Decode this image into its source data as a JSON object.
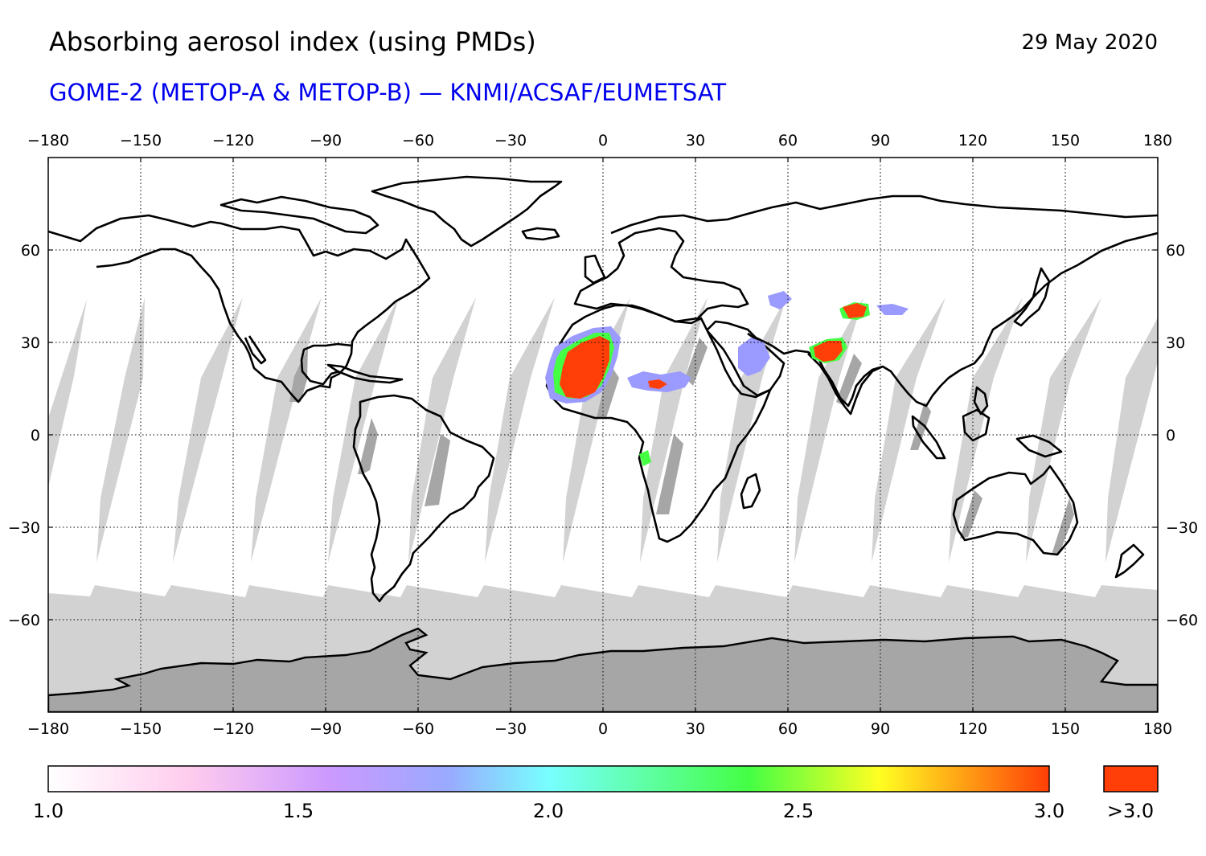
{
  "header": {
    "title": "Absorbing aerosol index (using PMDs)",
    "date": "29 May 2020",
    "subtitle": "GOME-2 (METOP-A & METOP-B) — KNMI/ACSAF/EUMETSAT"
  },
  "map": {
    "projection": "equirectangular",
    "lon_range": [
      -180,
      180
    ],
    "lat_range": [
      -90,
      90
    ],
    "lon_ticks": [
      -180,
      -150,
      -120,
      -90,
      -60,
      -30,
      0,
      30,
      60,
      90,
      120,
      150,
      180
    ],
    "lat_ticks": [
      -60,
      -30,
      0,
      30,
      60
    ],
    "lon_tick_labels": [
      "−180",
      "−150",
      "−120",
      "−90",
      "−60",
      "−30",
      "0",
      "30",
      "60",
      "90",
      "120",
      "150",
      "180"
    ],
    "lat_tick_labels": [
      "−60",
      "−30",
      "0",
      "30",
      "60"
    ],
    "grid": "dotted",
    "colors": {
      "no_data": "#d2d2d2",
      "land_no_data": "#a6a6a6",
      "coastline": "#000000",
      "high_value": "#ff3f07"
    }
  },
  "colorbar": {
    "range": [
      1.0,
      3.0
    ],
    "tick_labels": [
      "1.0",
      "1.5",
      "2.0",
      "2.5",
      "3.0"
    ],
    "overflow_label": ">3.0",
    "overflow_color": "#ff3f07",
    "stops": [
      "#ffffff",
      "#ffccee",
      "#cc99ff",
      "#99aaff",
      "#77ffff",
      "#44ff44",
      "#ffff22",
      "#ff3f07"
    ]
  }
}
